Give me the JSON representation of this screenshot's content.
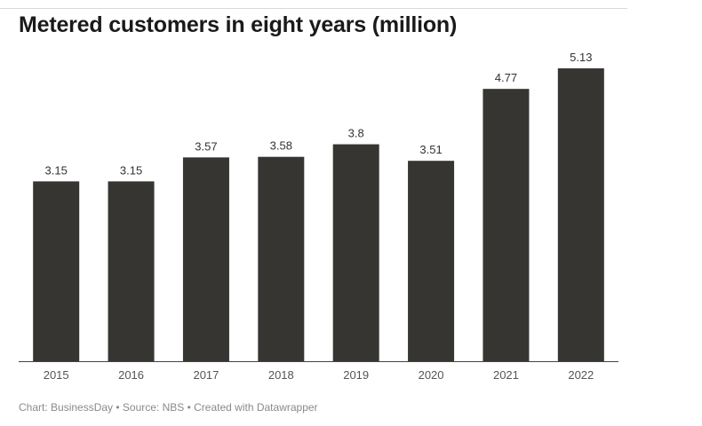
{
  "chart_data": {
    "type": "bar",
    "title": "Metered customers in eight years (million)",
    "categories": [
      "2015",
      "2016",
      "2017",
      "2018",
      "2019",
      "2020",
      "2021",
      "2022"
    ],
    "values": [
      3.15,
      3.15,
      3.57,
      3.58,
      3.8,
      3.51,
      4.77,
      5.13
    ],
    "value_labels": [
      "3.15",
      "3.15",
      "3.57",
      "3.58",
      "3.8",
      "3.51",
      "4.77",
      "5.13"
    ],
    "xlabel": "",
    "ylabel": "",
    "ylim": [
      0,
      5.13
    ],
    "grid": false,
    "bar_color": "#363532",
    "axis_color": "#444444"
  },
  "footer": {
    "text": "Chart: BusinessDay • Source: NBS • Created with Datawrapper"
  }
}
